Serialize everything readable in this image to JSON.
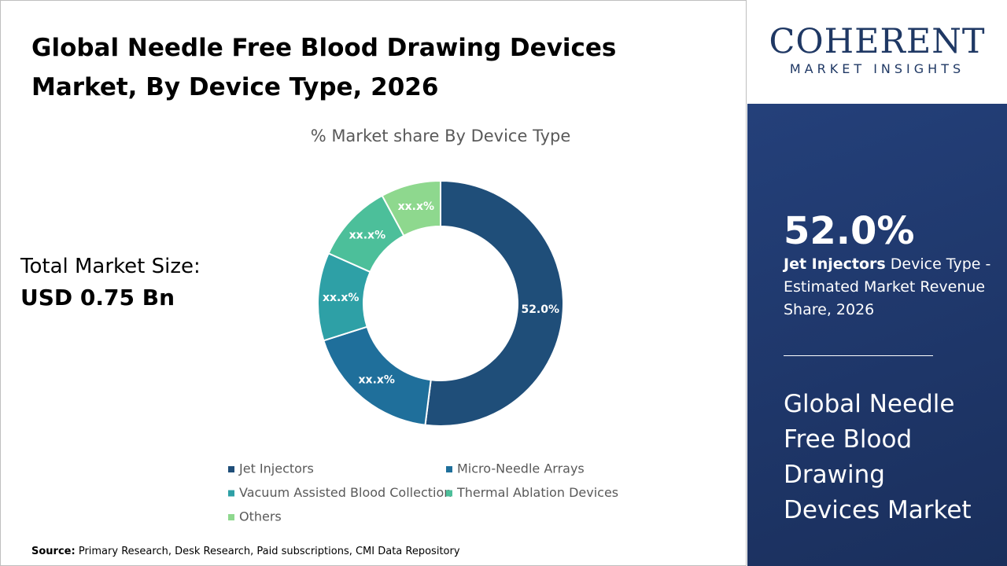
{
  "header": {
    "title": "Global Needle Free Blood Drawing Devices Market, By Device Type, 2026"
  },
  "market_size": {
    "label": "Total Market Size:",
    "value": "USD 0.75 Bn"
  },
  "logo": {
    "name": "COHERENT",
    "tagline": "MARKET INSIGHTS"
  },
  "sidebar": {
    "highlight": "52.0%",
    "segment": "Jet Injectors",
    "description": "Device Type - Estimated Market Revenue Share, 2026",
    "market_name": "Global Needle Free Blood Drawing Devices Market"
  },
  "source": {
    "label": "Source:",
    "text": "Primary Research, Desk Research, Paid subscriptions, CMI Data Repository"
  },
  "chart_data": {
    "type": "donut",
    "title": "% Market share By Device Type",
    "categories": [
      "Jet Injectors",
      "Micro-Needle Arrays",
      "Vacuum Assisted Blood Collection",
      "Thermal Ablation Devices",
      "Others"
    ],
    "values": [
      52.0,
      18.1,
      11.6,
      10.4,
      7.9
    ],
    "value_labels": [
      "52.0%",
      "xx.x%",
      "xx.x%",
      "xx.x%",
      "xx.x%"
    ],
    "colors": [
      "#1f4e79",
      "#1f6f9b",
      "#2ea0a6",
      "#4cbf9a",
      "#8ed88e"
    ]
  }
}
